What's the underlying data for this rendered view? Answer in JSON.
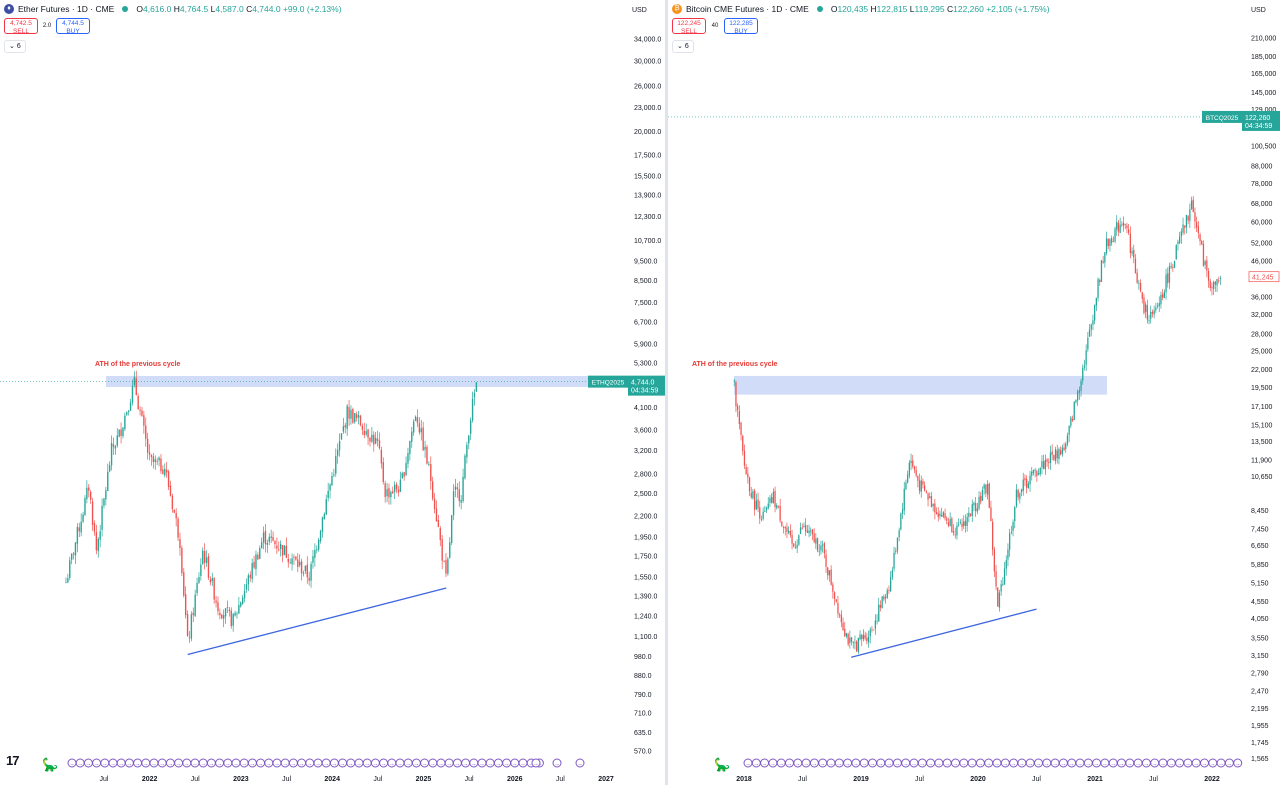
{
  "left": {
    "header": {
      "symbol_icon": "ethereum-icon",
      "title": "Ether Futures · 1D · CME",
      "ohlc": {
        "o": "4,616.0",
        "h": "4,764.5",
        "l": "4,587.0",
        "c": "4,744.0",
        "change": "+99.0 (+2.13%)"
      }
    },
    "trade": {
      "sell_price": "4,742.5",
      "sell_label": "SELL",
      "spread": "2.0",
      "buy_price": "4,744.5",
      "buy_label": "BUY"
    },
    "collapse_label": "6",
    "currency": "USD",
    "price_tag": {
      "symbol": "ETHQ2025",
      "price": "4,744.0",
      "countdown": "04:34:59"
    },
    "annotation": "ATH of the previous cycle"
  },
  "right": {
    "header": {
      "symbol_icon": "bitcoin-icon",
      "title": "Bitcoin CME Futures · 1D · CME",
      "ohlc": {
        "o": "120,435",
        "h": "122,815",
        "l": "119,295",
        "c": "122,260",
        "change": "+2,105 (+1.75%)"
      }
    },
    "trade": {
      "sell_price": "122,245",
      "sell_label": "SELL",
      "spread": "40",
      "buy_price": "122,285",
      "buy_label": "BUY"
    },
    "collapse_label": "6",
    "currency": "USD",
    "price_tag": {
      "symbol": "BTCQ2025",
      "price": "122,260",
      "countdown": "04:34:59"
    },
    "annotation": "ATH of the previous cycle"
  },
  "chart_data": [
    {
      "type": "candlestick",
      "title": "Ether Futures · 1D · CME",
      "yscale": "log",
      "ylim": [
        540,
        37000
      ],
      "y_ticks": [
        "34,000.0",
        "30,000.0",
        "26,000.0",
        "23,000.0",
        "20,000.0",
        "17,500.0",
        "15,500.0",
        "13,900.0",
        "12,300.0",
        "10,700.0",
        "9,500.0",
        "8,500.0",
        "7,500.0",
        "6,700.0",
        "5,900.0",
        "5,300.0",
        "4,100.0",
        "3,600.0",
        "3,200.0",
        "2,800.0",
        "2,500.0",
        "2,200.0",
        "1,950.0",
        "1,750.0",
        "1,550.0",
        "1,390.0",
        "1,240.0",
        "1,100.0",
        "980.0",
        "880.0",
        "790.0",
        "710.0",
        "635.0",
        "570.0"
      ],
      "y_tick_values": [
        34000,
        30000,
        26000,
        23000,
        20000,
        17500,
        15500,
        13900,
        12300,
        10700,
        9500,
        8500,
        7500,
        6700,
        5900,
        5300,
        4100,
        3600,
        3200,
        2800,
        2500,
        2200,
        1950,
        1750,
        1550,
        1390,
        1240,
        1100,
        980,
        880,
        790,
        710,
        635,
        570
      ],
      "x_ticks": [
        "Jul",
        "2022",
        "Jul",
        "2023",
        "Jul",
        "2024",
        "Jul",
        "2025",
        "Jul",
        "2026",
        "Jul",
        "2027"
      ],
      "x_tick_dates": [
        "2021-07",
        "2022-01",
        "2022-07",
        "2023-01",
        "2023-07",
        "2024-01",
        "2024-07",
        "2025-01",
        "2025-07",
        "2026-01",
        "2026-07",
        "2027-01"
      ],
      "price_path": [
        [
          "2021-02",
          1500
        ],
        [
          "2021-05",
          2600
        ],
        [
          "2021-06",
          1800
        ],
        [
          "2021-08",
          3200
        ],
        [
          "2021-09",
          3500
        ],
        [
          "2021-11",
          4700
        ],
        [
          "2022-01",
          3000
        ],
        [
          "2022-03",
          2900
        ],
        [
          "2022-05",
          1900
        ],
        [
          "2022-06",
          1050
        ],
        [
          "2022-08",
          1800
        ],
        [
          "2022-10",
          1300
        ],
        [
          "2022-12",
          1200
        ],
        [
          "2023-04",
          1950
        ],
        [
          "2023-06",
          1850
        ],
        [
          "2023-08",
          1700
        ],
        [
          "2023-10",
          1550
        ],
        [
          "2023-12",
          2300
        ],
        [
          "2024-03",
          4000
        ],
        [
          "2024-05",
          3700
        ],
        [
          "2024-07",
          3300
        ],
        [
          "2024-08",
          2500
        ],
        [
          "2024-10",
          2600
        ],
        [
          "2024-12",
          4000
        ],
        [
          "2025-02",
          2700
        ],
        [
          "2025-04",
          1500
        ],
        [
          "2025-05",
          2500
        ],
        [
          "2025-06",
          2500
        ],
        [
          "2025-07",
          3700
        ],
        [
          "2025-08",
          4744
        ]
      ],
      "ath_zone": {
        "low": 4600,
        "high": 4900,
        "label": "ATH of the previous cycle"
      },
      "trendline": [
        [
          "2022-06",
          990
        ],
        [
          "2025-04",
          1450
        ]
      ],
      "last_price": 4744.0
    },
    {
      "type": "candlestick",
      "title": "Bitcoin CME Futures · 1D · CME",
      "yscale": "log",
      "ylim": [
        1500,
        230000
      ],
      "y_ticks": [
        "210,000",
        "185,000",
        "165,000",
        "145,000",
        "129,000",
        "100,500",
        "88,000",
        "78,000",
        "68,000",
        "60,000",
        "52,000",
        "46,000",
        "36,000",
        "32,000",
        "28,000",
        "25,000",
        "22,000",
        "19,500",
        "17,100",
        "15,100",
        "13,500",
        "11,900",
        "10,650",
        "8,450",
        "7,450",
        "6,650",
        "5,850",
        "5,150",
        "4,550",
        "4,050",
        "3,550",
        "3,150",
        "2,790",
        "2,470",
        "2,195",
        "1,955",
        "1,745",
        "1,565"
      ],
      "y_tick_values": [
        210000,
        185000,
        165000,
        145000,
        129000,
        100500,
        88000,
        78000,
        68000,
        60000,
        52000,
        46000,
        36000,
        32000,
        28000,
        25000,
        22000,
        19500,
        17100,
        15100,
        13500,
        11900,
        10650,
        8450,
        7450,
        6650,
        5850,
        5150,
        4550,
        4050,
        3550,
        3150,
        2790,
        2470,
        2195,
        1955,
        1745,
        1565
      ],
      "x_ticks": [
        "2018",
        "Jul",
        "2019",
        "Jul",
        "2020",
        "Jul",
        "2021",
        "Jul",
        "2022"
      ],
      "x_tick_dates": [
        "2018-01",
        "2018-07",
        "2019-01",
        "2019-07",
        "2020-01",
        "2020-07",
        "2021-01",
        "2021-07",
        "2022-01"
      ],
      "price_path": [
        [
          "2017-12",
          19500
        ],
        [
          "2018-01",
          11500
        ],
        [
          "2018-02",
          9000
        ],
        [
          "2018-03",
          8000
        ],
        [
          "2018-04",
          9200
        ],
        [
          "2018-06",
          6500
        ],
        [
          "2018-07",
          7500
        ],
        [
          "2018-09",
          6500
        ],
        [
          "2018-11",
          4000
        ],
        [
          "2018-12",
          3300
        ],
        [
          "2019-02",
          3700
        ],
        [
          "2019-04",
          5200
        ],
        [
          "2019-06",
          12000
        ],
        [
          "2019-07",
          10000
        ],
        [
          "2019-09",
          8300
        ],
        [
          "2019-11",
          7300
        ],
        [
          "2020-02",
          10000
        ],
        [
          "2020-03",
          4300
        ],
        [
          "2020-05",
          9500
        ],
        [
          "2020-08",
          11800
        ],
        [
          "2020-10",
          13000
        ],
        [
          "2020-12",
          24000
        ],
        [
          "2021-02",
          50000
        ],
        [
          "2021-04",
          62000
        ],
        [
          "2021-06",
          33000
        ],
        [
          "2021-07",
          31000
        ],
        [
          "2021-09",
          46000
        ],
        [
          "2021-11",
          68000
        ],
        [
          "2021-12",
          48000
        ],
        [
          "2022-01",
          38000
        ],
        [
          "2022-02",
          41245
        ]
      ],
      "ath_zone": {
        "low": 18500,
        "high": 21000,
        "label": "ATH of the previous cycle"
      },
      "trendline": [
        [
          "2018-12",
          3100
        ],
        [
          "2020-07",
          4300
        ]
      ],
      "last_price": 122260,
      "current_marker": 41245
    }
  ],
  "colors": {
    "up": "#26a69a",
    "down": "#ef5350",
    "zone": "#c9d6f7",
    "trendline": "#3f66e0",
    "annotation": "#e53935",
    "tag_bg": "#26a69a",
    "dashed": "#26a69a"
  },
  "icons": {
    "tradingview": "tradingview-logo",
    "drawing": "dinosaur-icon",
    "event": "event-marker-icon"
  }
}
